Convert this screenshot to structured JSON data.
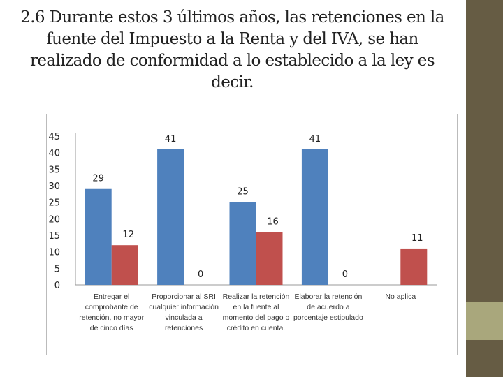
{
  "slide": {
    "title": "2.6 Durante estos 3 últimos años, las retenciones en la fuente del  Impuesto a la Renta y del IVA, se han realizado de conformidad a lo establecido a la ley es decir."
  },
  "colors": {
    "series1": "#4f81bd",
    "series2": "#c0504d",
    "sidebar_dark": "#665c44",
    "sidebar_light": "#a9a77c"
  },
  "chart_data": {
    "type": "bar",
    "categories": [
      "Entregar el comprobante de retención, no mayor de cinco días",
      "Proporcionar al SRI cualquier información vinculada a retenciones",
      "Realizar la retención en la fuente al momento del pago o crédito en cuenta.",
      "Elaborar la retención de acuerdo a porcentaje estipulado",
      "No aplica"
    ],
    "series": [
      {
        "values": [
          29,
          41,
          25,
          41,
          null
        ],
        "labels": [
          "29",
          "41",
          "25",
          "41",
          ""
        ]
      },
      {
        "values": [
          12,
          0,
          16,
          0,
          11
        ],
        "labels": [
          "12",
          "0",
          "16",
          "0",
          "11"
        ]
      }
    ],
    "yticks": [
      "0",
      "5",
      "10",
      "15",
      "20",
      "25",
      "30",
      "35",
      "40",
      "45"
    ],
    "ylim": [
      0,
      45
    ],
    "grid": false,
    "legend": "none"
  }
}
